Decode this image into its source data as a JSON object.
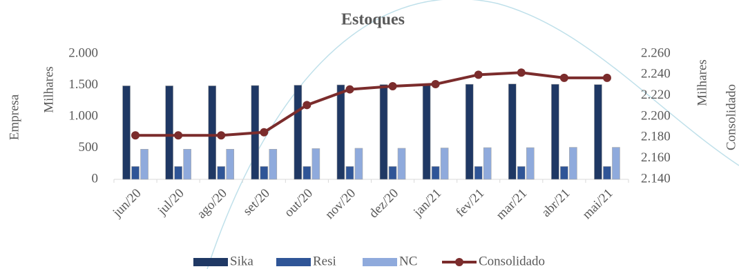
{
  "chart_data": {
    "type": "bar",
    "title": "Estoques",
    "y_axis_label": "Empresa",
    "y_unit_label": "Milhares",
    "y2_axis_label": "Consolidado",
    "y2_unit_label": "Milhares",
    "categories": [
      "jun/20",
      "jul/20",
      "ago/20",
      "set/20",
      "out/20",
      "nov/20",
      "dez/20",
      "jan/21",
      "fev/21",
      "mar/21",
      "abr/21",
      "mai/21"
    ],
    "series": [
      {
        "name": "Sika",
        "type": "bar",
        "color": "#1f3864",
        "values": [
          1490,
          1490,
          1490,
          1495,
          1500,
          1505,
          1510,
          1510,
          1515,
          1520,
          1515,
          1510
        ]
      },
      {
        "name": "Resi",
        "type": "bar",
        "color": "#2f5597",
        "values": [
          205,
          205,
          205,
          205,
          205,
          205,
          205,
          205,
          205,
          205,
          205,
          205
        ]
      },
      {
        "name": "NC",
        "type": "bar",
        "color": "#8faadc",
        "values": [
          480,
          480,
          480,
          480,
          490,
          495,
          495,
          500,
          505,
          505,
          510,
          510
        ]
      },
      {
        "name": "Consolidado",
        "type": "line",
        "axis": "y2",
        "color": "#7b2c2c",
        "values": [
          2182,
          2182,
          2182,
          2185,
          2211,
          2226,
          2229,
          2231,
          2240,
          2242,
          2237,
          2237
        ]
      }
    ],
    "ylim": [
      0,
      2000
    ],
    "yticks": [
      0,
      500,
      {
        "value": 1000,
        "label": "1.000"
      },
      {
        "value": 1500,
        "label": "1.500"
      },
      {
        "value": 2000,
        "label": "2.000"
      }
    ],
    "y2lim": [
      2140,
      2260
    ],
    "y2ticks": [
      {
        "value": 2140,
        "label": "2.140"
      },
      {
        "value": 2160,
        "label": "2.160"
      },
      {
        "value": 2180,
        "label": "2.180"
      },
      {
        "value": 2200,
        "label": "2.200"
      },
      {
        "value": 2220,
        "label": "2.220"
      },
      {
        "value": 2240,
        "label": "2.240"
      },
      {
        "value": 2260,
        "label": "2.260"
      }
    ],
    "grid": false,
    "legend": "bottom"
  }
}
